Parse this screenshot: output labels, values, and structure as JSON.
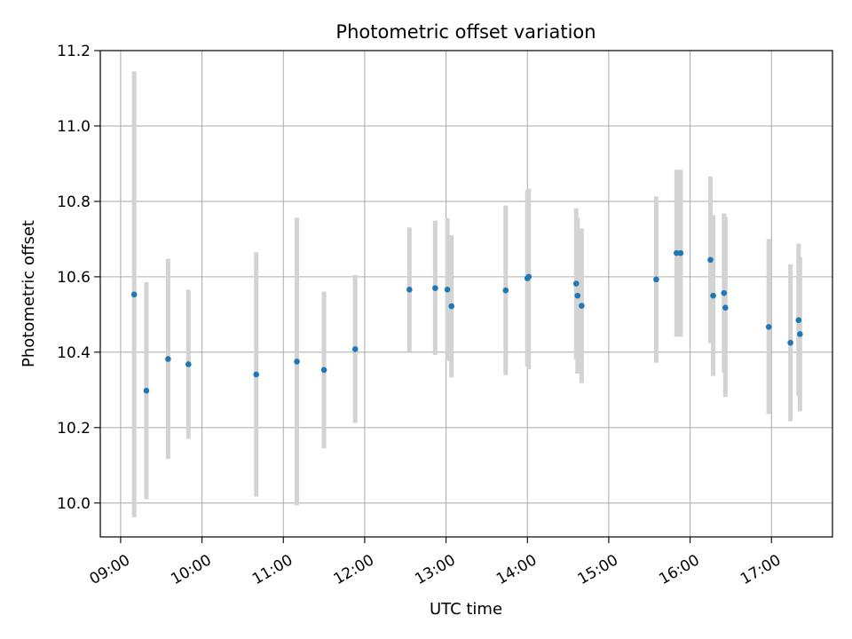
{
  "chart_data": {
    "type": "scatter",
    "title": "Photometric offset variation",
    "xlabel": "UTC time",
    "ylabel": "Photometric offset",
    "xlim": [
      "08:45",
      "17:45"
    ],
    "ylim": [
      9.91,
      11.2
    ],
    "x_ticks": [
      "09:00",
      "10:00",
      "11:00",
      "12:00",
      "13:00",
      "14:00",
      "15:00",
      "16:00",
      "17:00"
    ],
    "y_ticks": [
      "10.0",
      "10.2",
      "10.4",
      "10.6",
      "10.8",
      "11.0",
      "11.2"
    ],
    "grid": true,
    "colors": {
      "points": "#1f77b4",
      "errorbars": "#d3d3d3",
      "grid": "#b0b0b0"
    },
    "series": [
      {
        "points": [
          {
            "x": "09:10",
            "y": 10.553,
            "lo": 9.962,
            "hi": 11.145
          },
          {
            "x": "09:19",
            "y": 10.298,
            "lo": 10.01,
            "hi": 10.586
          },
          {
            "x": "09:35",
            "y": 10.382,
            "lo": 10.117,
            "hi": 10.648
          },
          {
            "x": "09:50",
            "y": 10.368,
            "lo": 10.17,
            "hi": 10.566
          },
          {
            "x": "10:40",
            "y": 10.341,
            "lo": 10.017,
            "hi": 10.665
          },
          {
            "x": "11:10",
            "y": 10.375,
            "lo": 9.994,
            "hi": 10.757
          },
          {
            "x": "11:30",
            "y": 10.353,
            "lo": 10.145,
            "hi": 10.561
          },
          {
            "x": "11:53",
            "y": 10.408,
            "lo": 10.212,
            "hi": 10.605
          },
          {
            "x": "12:33",
            "y": 10.566,
            "lo": 10.402,
            "hi": 10.731
          },
          {
            "x": "12:52",
            "y": 10.57,
            "lo": 10.393,
            "hi": 10.749
          },
          {
            "x": "13:01",
            "y": 10.566,
            "lo": 10.377,
            "hi": 10.755
          },
          {
            "x": "13:04",
            "y": 10.522,
            "lo": 10.333,
            "hi": 10.71
          },
          {
            "x": "13:44",
            "y": 10.564,
            "lo": 10.339,
            "hi": 10.789
          },
          {
            "x": "14:00",
            "y": 10.596,
            "lo": 10.362,
            "hi": 10.83
          },
          {
            "x": "14:01",
            "y": 10.6,
            "lo": 10.355,
            "hi": 10.834
          },
          {
            "x": "14:36",
            "y": 10.582,
            "lo": 10.381,
            "hi": 10.782
          },
          {
            "x": "14:37",
            "y": 10.55,
            "lo": 10.343,
            "hi": 10.757
          },
          {
            "x": "14:40",
            "y": 10.523,
            "lo": 10.318,
            "hi": 10.728
          },
          {
            "x": "15:35",
            "y": 10.593,
            "lo": 10.372,
            "hi": 10.813
          },
          {
            "x": "15:50",
            "y": 10.663,
            "lo": 10.441,
            "hi": 10.884
          },
          {
            "x": "15:53",
            "y": 10.663,
            "lo": 10.441,
            "hi": 10.884
          },
          {
            "x": "16:15",
            "y": 10.645,
            "lo": 10.424,
            "hi": 10.866
          },
          {
            "x": "16:17",
            "y": 10.55,
            "lo": 10.337,
            "hi": 10.764
          },
          {
            "x": "16:25",
            "y": 10.557,
            "lo": 10.345,
            "hi": 10.768
          },
          {
            "x": "16:26",
            "y": 10.518,
            "lo": 10.281,
            "hi": 10.76
          },
          {
            "x": "16:58",
            "y": 10.467,
            "lo": 10.236,
            "hi": 10.7
          },
          {
            "x": "17:14",
            "y": 10.425,
            "lo": 10.217,
            "hi": 10.633
          },
          {
            "x": "17:20",
            "y": 10.485,
            "lo": 10.285,
            "hi": 10.688
          },
          {
            "x": "17:21",
            "y": 10.448,
            "lo": 10.243,
            "hi": 10.652
          }
        ]
      }
    ]
  }
}
